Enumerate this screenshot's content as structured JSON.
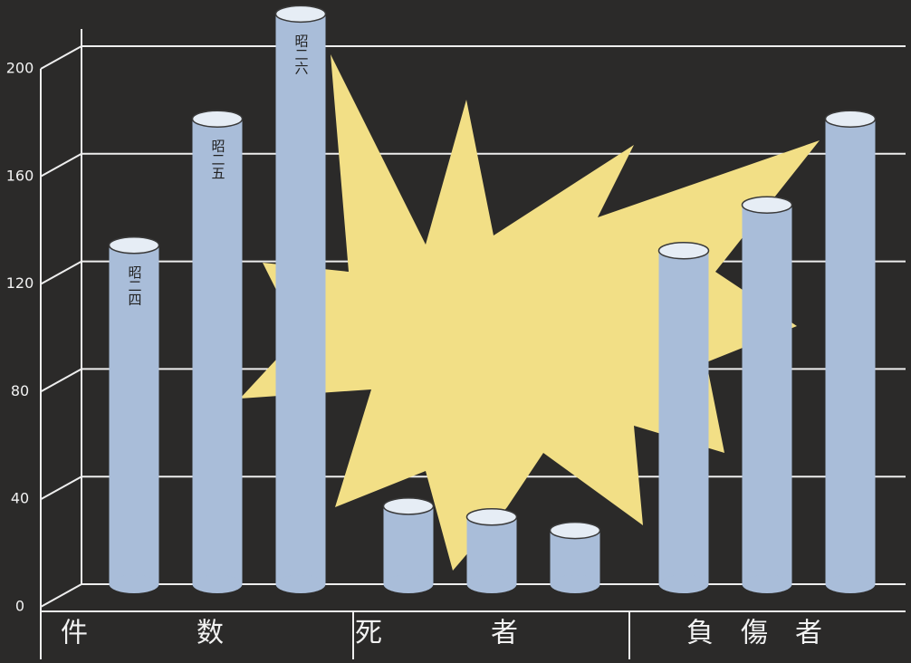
{
  "chart_data": {
    "type": "bar",
    "categories": [
      "件数",
      "死者",
      "負傷者"
    ],
    "series": [
      {
        "name": "昭二四",
        "color": "#a9bdd9",
        "values": [
          126,
          29,
          124
        ]
      },
      {
        "name": "昭二五",
        "color": "#a9bdd9",
        "values": [
          173,
          25,
          141
        ]
      },
      {
        "name": "昭二六",
        "color": "#a9bdd9",
        "values": [
          212,
          20,
          173
        ]
      }
    ],
    "ylim": [
      0,
      212
    ],
    "yticks": [
      0,
      40,
      80,
      120,
      160,
      200
    ],
    "grid": true
  }
}
